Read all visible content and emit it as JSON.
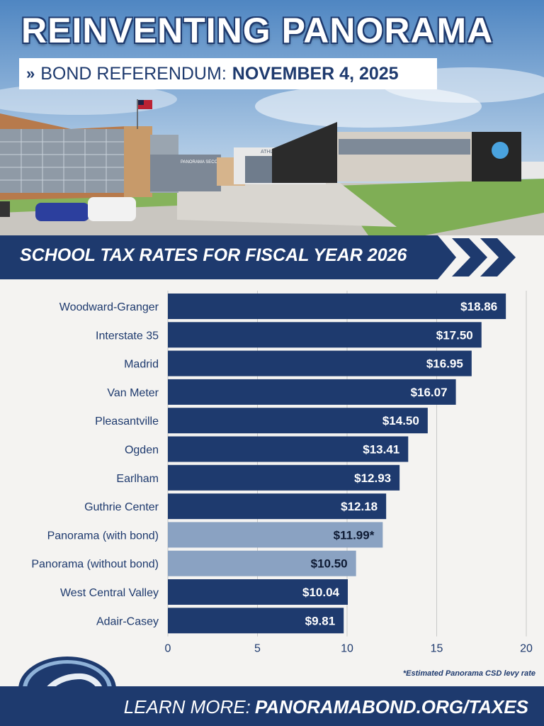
{
  "header": {
    "title": "REINVENTING PANORAMA",
    "subtitle_prefix": "BOND REFERENDUM:",
    "subtitle_date": "NOVEMBER 4, 2025",
    "chevron": "»",
    "building_sign": "PANORAMA SECONDARY SCHOOL",
    "entrance_sign": "ATHLETICS ENTRANCE"
  },
  "banner": {
    "title": "SCHOOL TAX RATES FOR FISCAL YEAR 2026"
  },
  "colors": {
    "navy": "#1e3a6e",
    "light_bar": "#8aa2c2",
    "background": "#f4f3f1"
  },
  "chart_data": {
    "type": "bar",
    "orientation": "horizontal",
    "title": "SCHOOL TAX RATES FOR FISCAL YEAR 2026",
    "xlim": [
      0,
      20
    ],
    "xticks": [
      0,
      5,
      10,
      15,
      20
    ],
    "grid": true,
    "categories": [
      "Woodward-Granger",
      "Interstate 35",
      "Madrid",
      "Van Meter",
      "Pleasantville",
      "Ogden",
      "Earlham",
      "Guthrie Center",
      "Panorama (with bond)",
      "Panorama (without bond)",
      "West Central Valley",
      "Adair-Casey"
    ],
    "values": [
      18.86,
      17.5,
      16.95,
      16.07,
      14.5,
      13.41,
      12.93,
      12.18,
      11.99,
      10.5,
      10.04,
      9.81
    ],
    "labels": [
      "$18.86",
      "$17.50",
      "$16.95",
      "$16.07",
      "$14.50",
      "$13.41",
      "$12.93",
      "$12.18",
      "$11.99*",
      "$10.50",
      "$10.04",
      "$9.81"
    ],
    "highlight": [
      false,
      false,
      false,
      false,
      false,
      false,
      false,
      false,
      true,
      true,
      false,
      false
    ]
  },
  "footnote": "*Estimated Panorama CSD levy rate",
  "footer": {
    "prefix": "LEARN MORE:",
    "url": "PANORAMABOND.ORG/TAXES"
  }
}
